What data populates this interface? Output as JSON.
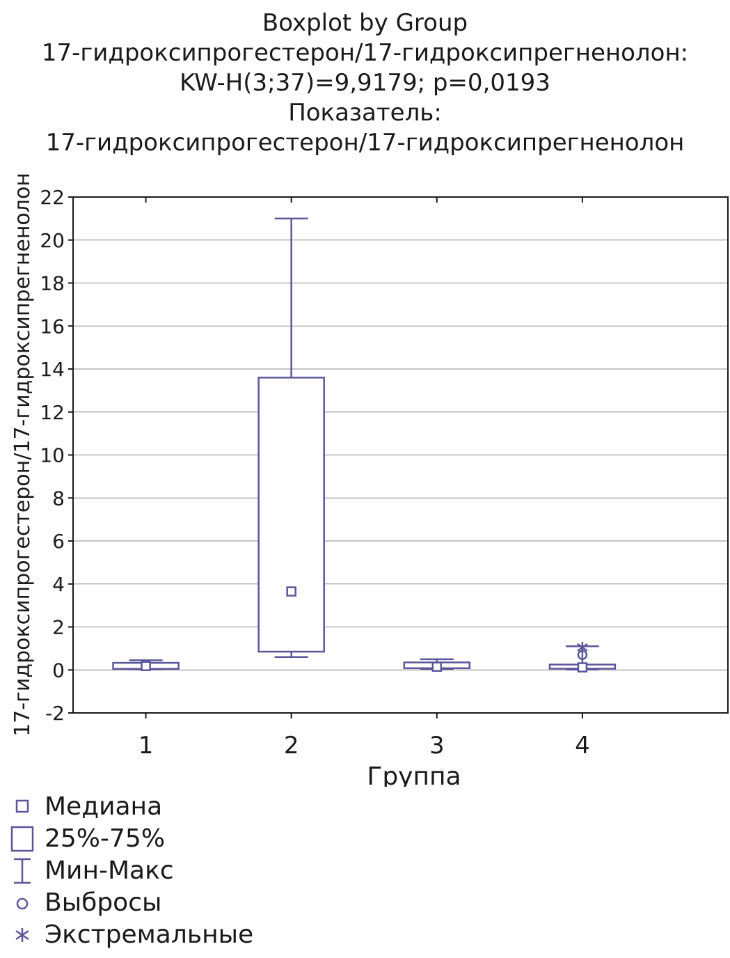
{
  "chart_data": {
    "type": "boxplot",
    "title_lines": [
      "Boxplot by Group",
      "17-гидроксипрогестерон/17-гидроксипрегненолон:",
      "KW-H(3;37)=9,9179; p=0,0193",
      "Показатель:",
      "17-гидроксипрогестерон/17-гидроксипрегненолон"
    ],
    "xlabel": "Группа",
    "ylabel": "17-гидроксипрогестерон/17-гидроксипрегненолон",
    "ylim": [
      -2,
      22
    ],
    "yticks": [
      "-2",
      "0",
      "2",
      "4",
      "6",
      "8",
      "10",
      "12",
      "14",
      "16",
      "18",
      "20",
      "22"
    ],
    "categories": [
      "1",
      "2",
      "3",
      "4"
    ],
    "grid": true,
    "series_color": "#5c569a",
    "groups": [
      {
        "category": "1",
        "median": 0.18,
        "q1": 0.05,
        "q3": 0.33,
        "min": 0.03,
        "max": 0.45,
        "outliers": [],
        "extremes": []
      },
      {
        "category": "2",
        "median": 3.65,
        "q1": 0.85,
        "q3": 13.6,
        "min": 0.6,
        "max": 21.0,
        "outliers": [],
        "extremes": []
      },
      {
        "category": "3",
        "median": 0.15,
        "q1": 0.08,
        "q3": 0.35,
        "min": 0.05,
        "max": 0.5,
        "outliers": [],
        "extremes": []
      },
      {
        "category": "4",
        "median": 0.12,
        "q1": 0.06,
        "q3": 0.25,
        "min": 0.02,
        "max": 1.1,
        "outliers": [
          0.7
        ],
        "extremes": [
          1.05
        ]
      }
    ],
    "legend": [
      {
        "symbol": "median",
        "label": "Медиана"
      },
      {
        "symbol": "box",
        "label": "25%-75%"
      },
      {
        "symbol": "whisker",
        "label": "Мин-Макс"
      },
      {
        "symbol": "outlier",
        "label": "Выбросы"
      },
      {
        "symbol": "extreme",
        "label": "Экстремальные"
      }
    ]
  }
}
